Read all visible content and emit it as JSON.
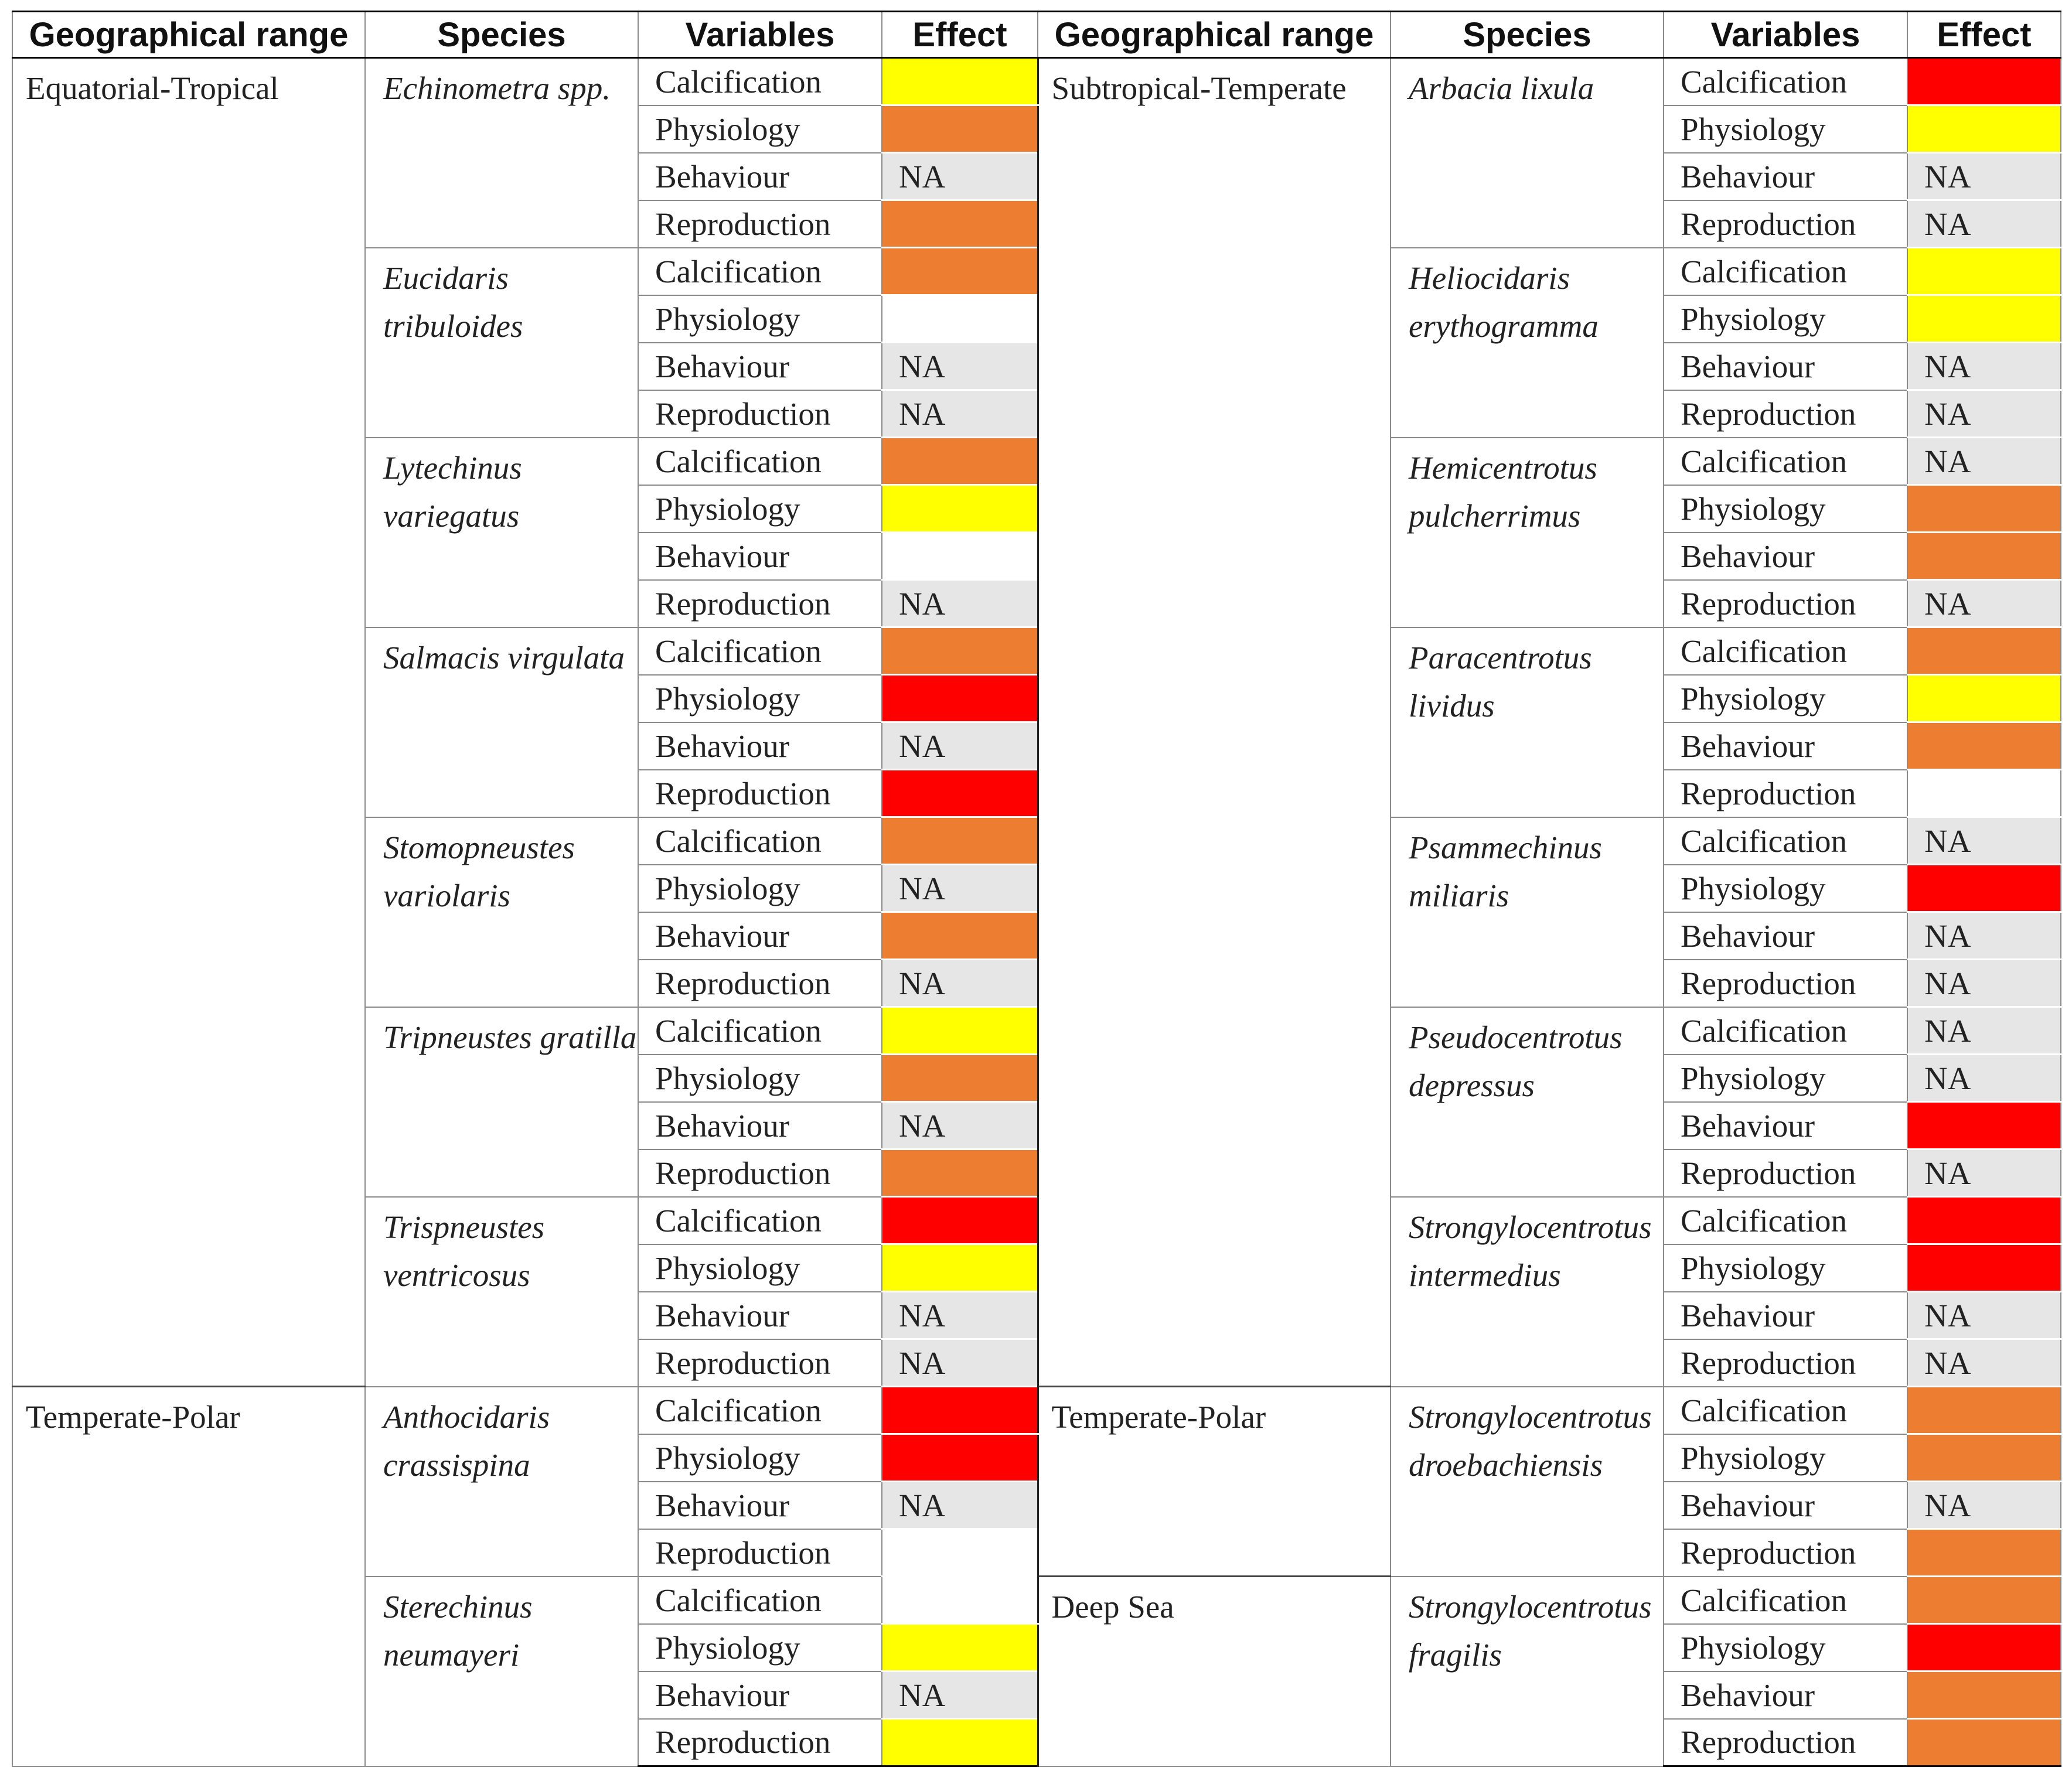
{
  "header": {
    "region": "Geographical range",
    "species": "Species",
    "variables": "Variables",
    "effect": "Effect"
  },
  "effect_colors": {
    "yellow": "#ffff00",
    "orange": "#ed7d31",
    "red": "#ff0000",
    "na": "#e6e6e6",
    "empty": "#ffffff"
  },
  "left": [
    {
      "region": "Equatorial-Tropical",
      "species": [
        {
          "name": "Echinometra spp.",
          "effects": [
            [
              "Calcification",
              "yellow",
              ""
            ],
            [
              "Physiology",
              "orange",
              ""
            ],
            [
              "Behaviour",
              "na",
              "NA"
            ],
            [
              "Reproduction",
              "orange",
              ""
            ]
          ]
        },
        {
          "name": "Eucidaris tribuloides",
          "effects": [
            [
              "Calcification",
              "orange",
              ""
            ],
            [
              "Physiology",
              "empty",
              ""
            ],
            [
              "Behaviour",
              "na",
              "NA"
            ],
            [
              "Reproduction",
              "na",
              "NA"
            ]
          ]
        },
        {
          "name": "Lytechinus variegatus",
          "effects": [
            [
              "Calcification",
              "orange",
              ""
            ],
            [
              "Physiology",
              "yellow",
              ""
            ],
            [
              "Behaviour",
              "empty",
              ""
            ],
            [
              "Reproduction",
              "na",
              "NA"
            ]
          ]
        },
        {
          "name": "Salmacis virgulata",
          "effects": [
            [
              "Calcification",
              "orange",
              ""
            ],
            [
              "Physiology",
              "red",
              ""
            ],
            [
              "Behaviour",
              "na",
              "NA"
            ],
            [
              "Reproduction",
              "red",
              ""
            ]
          ]
        },
        {
          "name": "Stomopneustes variolaris",
          "effects": [
            [
              "Calcification",
              "orange",
              ""
            ],
            [
              "Physiology",
              "na",
              "NA"
            ],
            [
              "Behaviour",
              "orange",
              ""
            ],
            [
              "Reproduction",
              "na",
              "NA"
            ]
          ]
        },
        {
          "name": "Tripneustes gratilla",
          "effects": [
            [
              "Calcification",
              "yellow",
              ""
            ],
            [
              "Physiology",
              "orange",
              ""
            ],
            [
              "Behaviour",
              "na",
              "NA"
            ],
            [
              "Reproduction",
              "orange",
              ""
            ]
          ]
        },
        {
          "name": "Trispneustes ventricosus",
          "effects": [
            [
              "Calcification",
              "red",
              ""
            ],
            [
              "Physiology",
              "yellow",
              ""
            ],
            [
              "Behaviour",
              "na",
              "NA"
            ],
            [
              "Reproduction",
              "na",
              "NA"
            ]
          ]
        }
      ]
    },
    {
      "region": "Temperate-Polar",
      "species": [
        {
          "name": "Anthocidaris crassispina",
          "effects": [
            [
              "Calcification",
              "red",
              ""
            ],
            [
              "Physiology",
              "red",
              ""
            ],
            [
              "Behaviour",
              "na",
              "NA"
            ],
            [
              "Reproduction",
              "empty",
              ""
            ]
          ]
        },
        {
          "name": "Sterechinus neumayeri",
          "effects": [
            [
              "Calcification",
              "empty",
              ""
            ],
            [
              "Physiology",
              "yellow",
              ""
            ],
            [
              "Behaviour",
              "na",
              "NA"
            ],
            [
              "Reproduction",
              "yellow",
              ""
            ]
          ]
        }
      ]
    }
  ],
  "right": [
    {
      "region": "Subtropical-Temperate",
      "species": [
        {
          "name": "Arbacia lixula",
          "effects": [
            [
              "Calcification",
              "red",
              ""
            ],
            [
              "Physiology",
              "yellow",
              ""
            ],
            [
              "Behaviour",
              "na",
              "NA"
            ],
            [
              "Reproduction",
              "na",
              "NA"
            ]
          ]
        },
        {
          "name": "Heliocidaris erythogramma",
          "effects": [
            [
              "Calcification",
              "yellow",
              ""
            ],
            [
              "Physiology",
              "yellow",
              ""
            ],
            [
              "Behaviour",
              "na",
              "NA"
            ],
            [
              "Reproduction",
              "na",
              "NA"
            ]
          ]
        },
        {
          "name": "Hemicentrotus pulcherrimus",
          "effects": [
            [
              "Calcification",
              "na",
              "NA"
            ],
            [
              "Physiology",
              "orange",
              ""
            ],
            [
              "Behaviour",
              "orange",
              ""
            ],
            [
              "Reproduction",
              "na",
              "NA"
            ]
          ]
        },
        {
          "name": "Paracentrotus lividus",
          "effects": [
            [
              "Calcification",
              "orange",
              ""
            ],
            [
              "Physiology",
              "yellow",
              ""
            ],
            [
              "Behaviour",
              "orange",
              ""
            ],
            [
              "Reproduction",
              "empty",
              ""
            ]
          ]
        },
        {
          "name": "Psammechinus miliaris",
          "effects": [
            [
              "Calcification",
              "na",
              "NA"
            ],
            [
              "Physiology",
              "red",
              ""
            ],
            [
              "Behaviour",
              "na",
              "NA"
            ],
            [
              "Reproduction",
              "na",
              "NA"
            ]
          ]
        },
        {
          "name": "Pseudocentrotus depressus",
          "effects": [
            [
              "Calcification",
              "na",
              "NA"
            ],
            [
              "Physiology",
              "na",
              "NA"
            ],
            [
              "Behaviour",
              "red",
              ""
            ],
            [
              "Reproduction",
              "na",
              "NA"
            ]
          ]
        },
        {
          "name": "Strongylocentrotus intermedius",
          "effects": [
            [
              "Calcification",
              "red",
              ""
            ],
            [
              "Physiology",
              "red",
              ""
            ],
            [
              "Behaviour",
              "na",
              "NA"
            ],
            [
              "Reproduction",
              "na",
              "NA"
            ]
          ]
        }
      ]
    },
    {
      "region": "Temperate-Polar",
      "species": [
        {
          "name": "Strongylocentrotus droebachiensis",
          "effects": [
            [
              "Calcification",
              "orange",
              ""
            ],
            [
              "Physiology",
              "orange",
              ""
            ],
            [
              "Behaviour",
              "na",
              "NA"
            ],
            [
              "Reproduction",
              "orange",
              ""
            ]
          ]
        }
      ]
    },
    {
      "region": "Deep Sea",
      "species": [
        {
          "name": "Strongylocentrotus fragilis",
          "effects": [
            [
              "Calcification",
              "orange",
              ""
            ],
            [
              "Physiology",
              "red",
              ""
            ],
            [
              "Behaviour",
              "orange",
              ""
            ],
            [
              "Reproduction",
              "orange",
              ""
            ]
          ]
        }
      ]
    }
  ]
}
